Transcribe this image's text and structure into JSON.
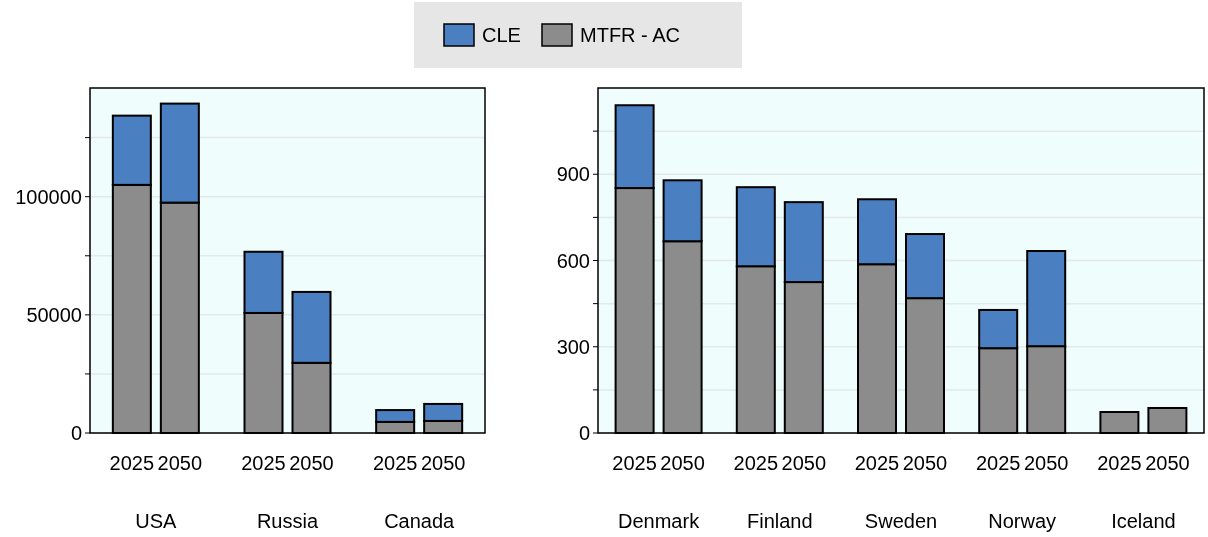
{
  "chart_data": [
    {
      "type": "bar",
      "stacked": true,
      "categories": [
        "2025",
        "2050",
        "2025",
        "2050",
        "2025",
        "2050"
      ],
      "annotations": [
        "USA",
        "Russia",
        "Canada"
      ],
      "legend": "top",
      "series": [
        {
          "name": "MTFR - AC",
          "color": "#8c8c8c",
          "values": [
            105000,
            97500,
            50800,
            29700,
            4700,
            5100
          ]
        },
        {
          "name": "CLE",
          "color": "#4a7fc1",
          "values": [
            29300,
            41900,
            25900,
            30000,
            5000,
            7200
          ]
        }
      ],
      "ylim": [
        0,
        146000
      ],
      "yticks": [
        0,
        {
          "value": 25000,
          "label": null
        },
        50000,
        {
          "value": 75000,
          "label": null
        },
        100000,
        {
          "value": 125000,
          "label": null
        }
      ],
      "grid": "y"
    },
    {
      "type": "bar",
      "stacked": true,
      "categories": [
        "2025",
        "2050",
        "2025",
        "2050",
        "2025",
        "2050",
        "2025",
        "2050",
        "2025",
        "2050"
      ],
      "annotations": [
        "Denmark",
        "Finland",
        "Sweden",
        "Norway",
        "Iceland"
      ],
      "series": [
        {
          "color": "#8c8c8c",
          "values": [
            852,
            667,
            580,
            525,
            587,
            469,
            295,
            302,
            73,
            87
          ]
        },
        {
          "color": "#4a7fc1",
          "values": [
            288,
            212,
            275,
            278,
            226,
            223,
            133,
            331,
            0,
            0
          ]
        }
      ],
      "ylim": [
        0,
        1200
      ],
      "yticks": [
        0,
        {
          "value": 150,
          "label": null
        },
        300,
        {
          "value": 450,
          "label": null
        },
        600,
        {
          "value": 750,
          "label": null
        },
        900,
        {
          "value": 1050,
          "label": null
        }
      ],
      "grid": "y"
    }
  ]
}
